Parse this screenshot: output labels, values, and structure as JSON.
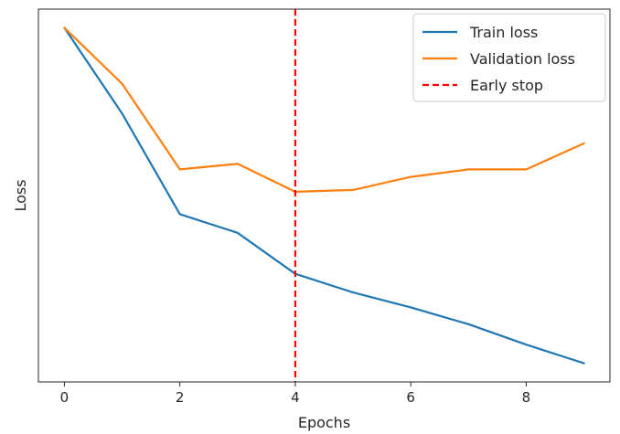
{
  "chart_data": {
    "type": "line",
    "title": "",
    "xlabel": "Epochs",
    "ylabel": "Loss",
    "x": [
      0,
      1,
      2,
      3,
      4,
      5,
      6,
      7,
      8,
      9
    ],
    "xlim": [
      -0.45,
      9.45
    ],
    "ylim": [
      0,
      1
    ],
    "xticks": [
      "0",
      "2",
      "4",
      "6",
      "8"
    ],
    "yticks_shown": false,
    "grid": false,
    "legend_placement": "top-right",
    "series": [
      {
        "name": "Train loss",
        "color": "#1f77b4",
        "style": "solid",
        "values": [
          0.95,
          0.72,
          0.45,
          0.4,
          0.29,
          0.24,
          0.2,
          0.155,
          0.1,
          0.05
        ]
      },
      {
        "name": "Validation loss",
        "color": "#ff7f0e",
        "style": "solid",
        "values": [
          0.95,
          0.8,
          0.57,
          0.585,
          0.51,
          0.515,
          0.55,
          0.57,
          0.57,
          0.64
        ]
      }
    ],
    "vlines": [
      {
        "name": "Early stop",
        "x": 4,
        "color": "#ff0000",
        "style": "dashed"
      }
    ]
  }
}
